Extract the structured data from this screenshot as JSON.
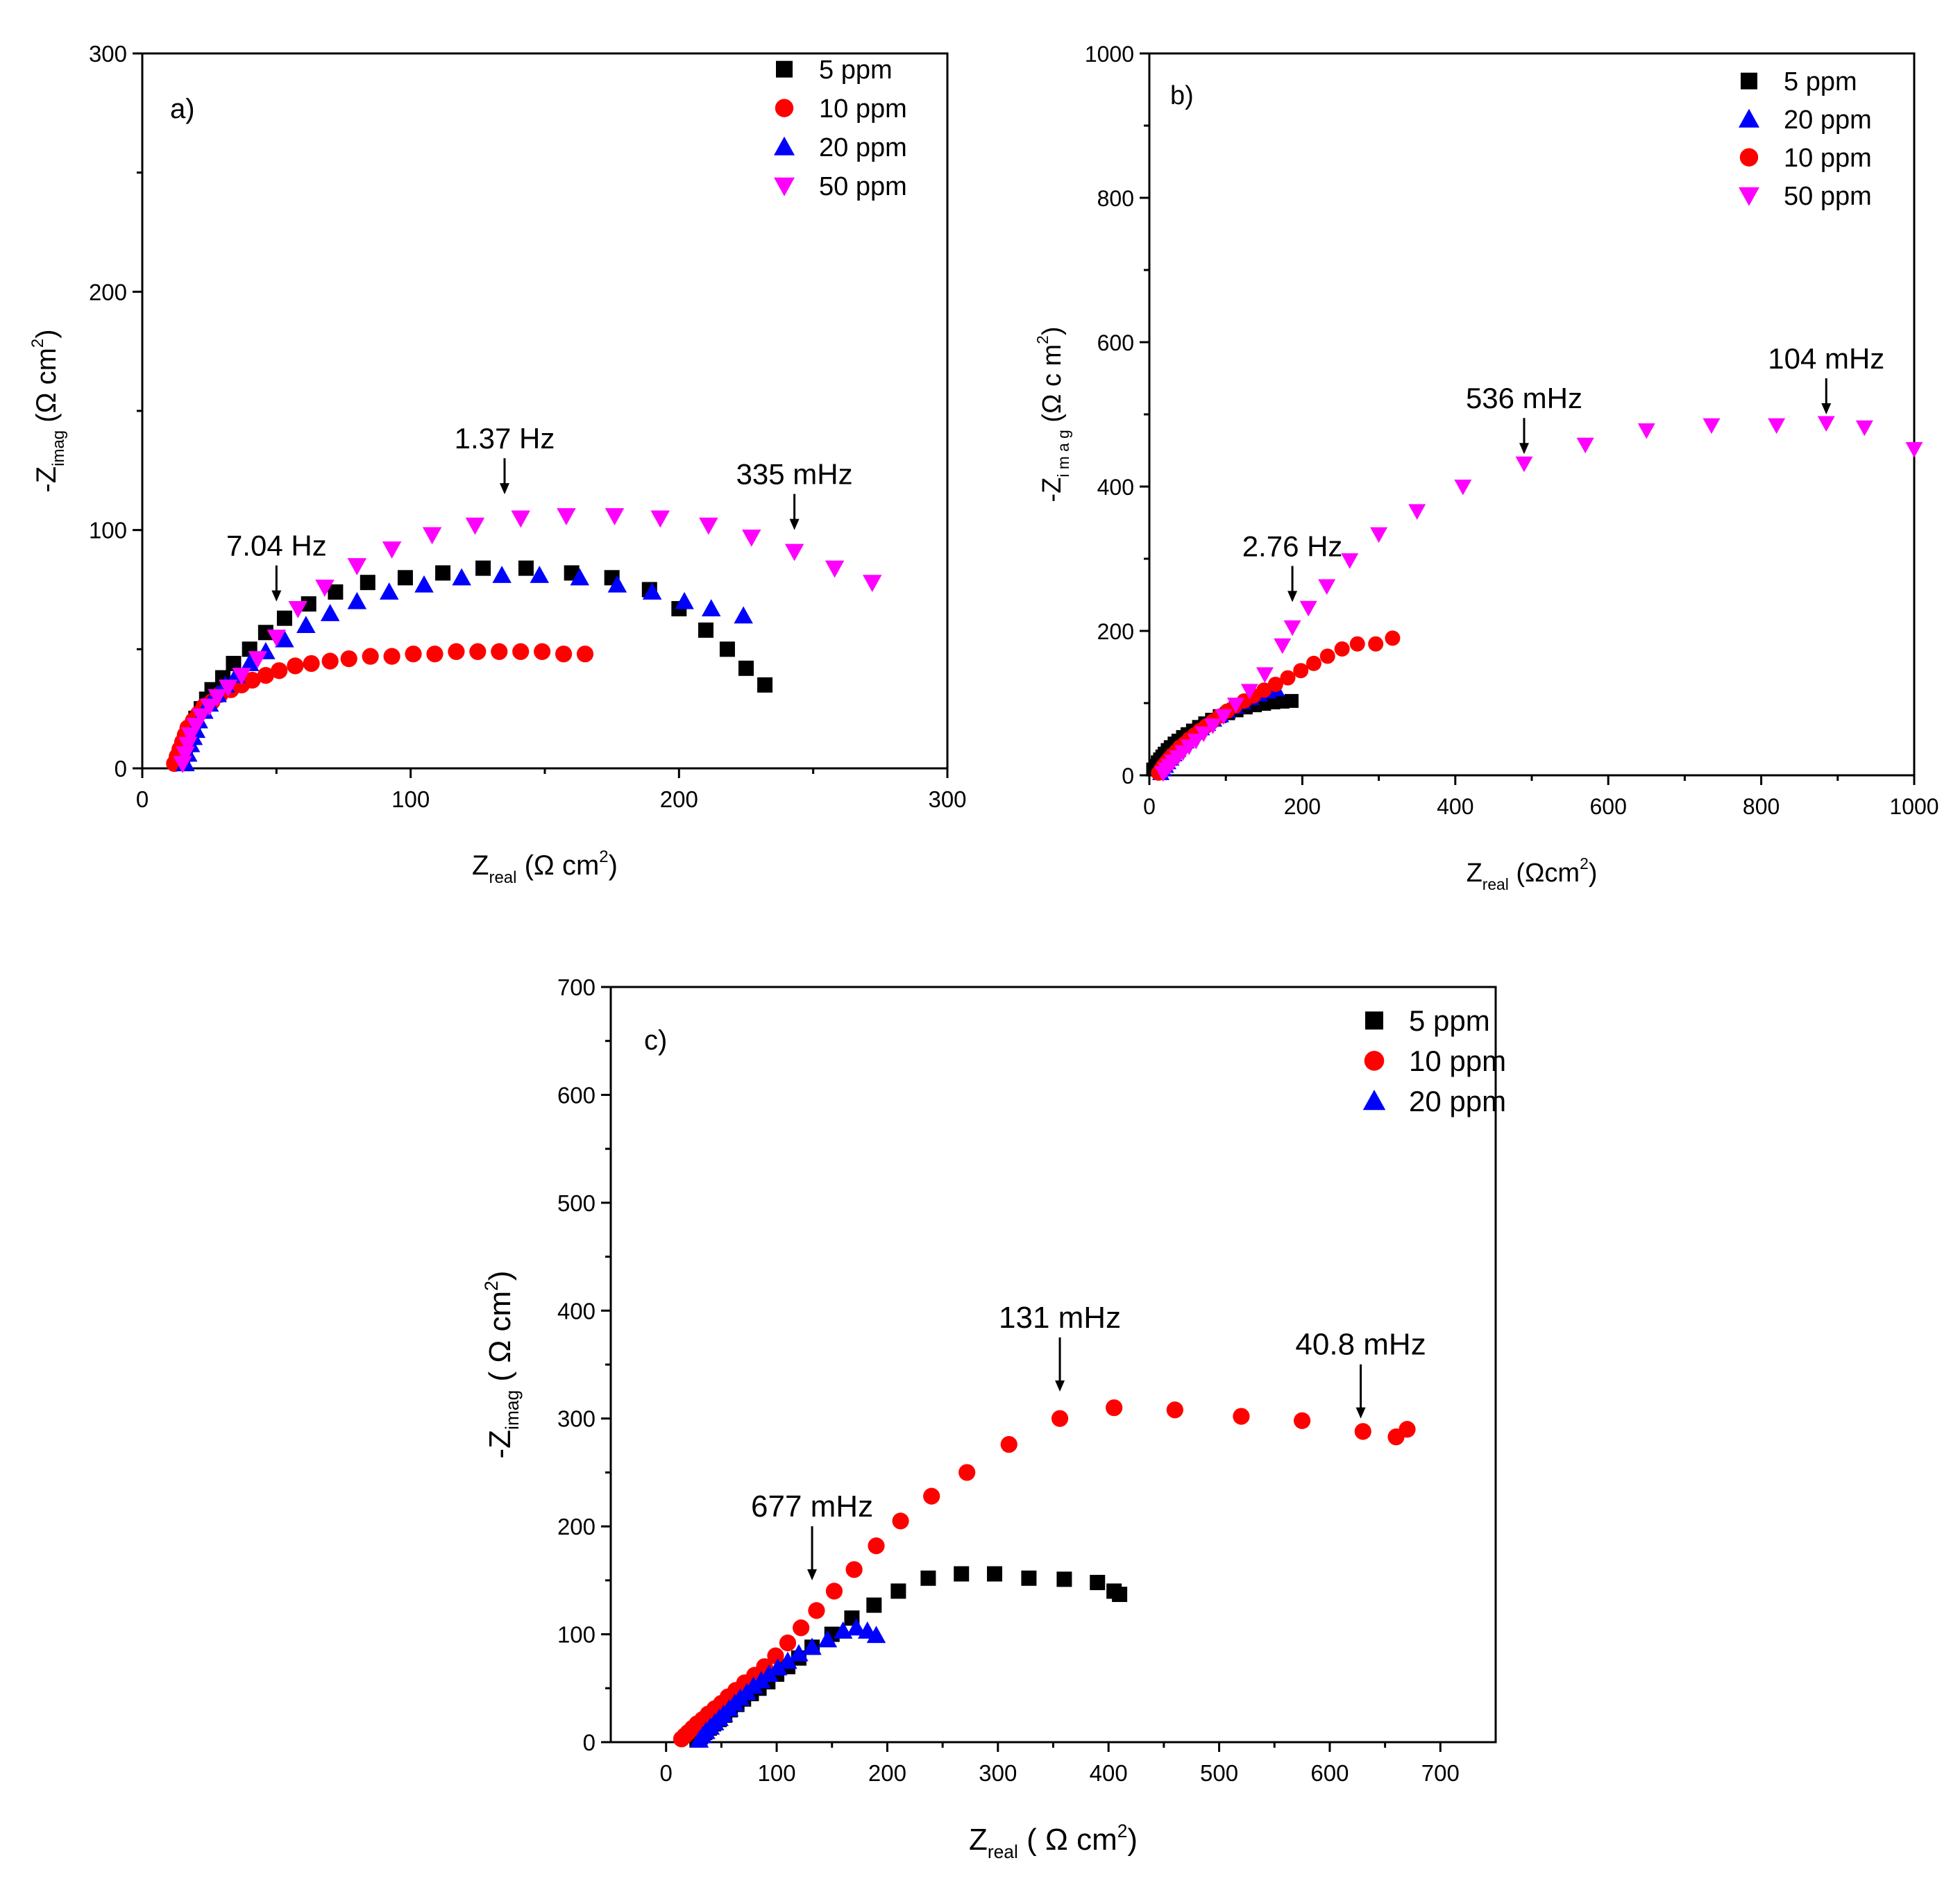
{
  "chart_data": [
    {
      "type": "scatter",
      "panel_label": "a)",
      "xlabel": {
        "prefix": "Z",
        "sub": "real",
        "suffix": " (Ω cm",
        "sup": "2",
        "close": ")"
      },
      "ylabel": {
        "prefix": "-Z",
        "sub": "imag",
        "suffix": " (Ω cm",
        "sup": "2",
        "close": ")"
      },
      "xlim": [
        0,
        300
      ],
      "ylim": [
        0,
        300
      ],
      "xticks": [
        0,
        100,
        200,
        300
      ],
      "yticks": [
        0,
        100,
        200,
        300
      ],
      "xtick_labels": [
        "0",
        "100",
        "200",
        "300"
      ],
      "ytick_labels": [
        "0",
        "100",
        "200",
        "300"
      ],
      "legend_position": "top-right",
      "series": [
        {
          "name": "5 ppm",
          "marker": "square",
          "color": "#000000",
          "x": [
            15,
            16,
            17,
            18,
            19,
            20,
            22,
            24,
            26,
            30,
            34,
            40,
            46,
            53,
            62,
            72,
            84,
            98,
            112,
            127,
            143,
            160,
            175,
            189,
            200,
            210,
            218,
            225,
            232
          ],
          "y": [
            2,
            6,
            10,
            14,
            17,
            21,
            25,
            29,
            33,
            38,
            44,
            50,
            57,
            63,
            69,
            74,
            78,
            80,
            82,
            84,
            84,
            82,
            80,
            75,
            67,
            58,
            50,
            42,
            35
          ]
        },
        {
          "name": "10 ppm",
          "marker": "circle",
          "color": "#ff0000",
          "x": [
            12,
            13,
            14,
            15,
            16,
            17,
            19,
            21,
            23,
            26,
            29,
            33,
            37,
            41,
            46,
            51,
            57,
            63,
            70,
            77,
            85,
            93,
            101,
            109,
            117,
            125,
            133,
            141,
            149,
            157,
            165
          ],
          "y": [
            2,
            5,
            8,
            11,
            14,
            17,
            20,
            23,
            26,
            28,
            31,
            33,
            35,
            37,
            39,
            41,
            43,
            44,
            45,
            46,
            47,
            47,
            48,
            48,
            49,
            49,
            49,
            49,
            49,
            48,
            48
          ]
        },
        {
          "name": "20 ppm",
          "marker": "triangle-up",
          "color": "#0000ff",
          "x": [
            16,
            17,
            18,
            19,
            20,
            21,
            23,
            25,
            28,
            31,
            35,
            40,
            46,
            53,
            61,
            70,
            80,
            92,
            105,
            119,
            134,
            148,
            163,
            177,
            190,
            202,
            212,
            224
          ],
          "y": [
            2,
            6,
            10,
            13,
            16,
            20,
            24,
            27,
            31,
            35,
            39,
            44,
            49,
            54,
            60,
            65,
            70,
            74,
            77,
            80,
            81,
            81,
            80,
            77,
            74,
            70,
            67,
            64
          ]
        },
        {
          "name": "50 ppm",
          "marker": "triangle-down",
          "color": "#ff00ff",
          "x": [
            15,
            16,
            17,
            18,
            20,
            22,
            25,
            28,
            32,
            37,
            43,
            50,
            58,
            68,
            80,
            93,
            108,
            124,
            141,
            158,
            176,
            193,
            211,
            227,
            243,
            258,
            272
          ],
          "y": [
            2,
            6,
            10,
            14,
            18,
            22,
            26,
            30,
            34,
            39,
            46,
            55,
            67,
            76,
            85,
            92,
            98,
            102,
            105,
            106,
            106,
            105,
            102,
            97,
            91,
            84,
            78
          ]
        }
      ],
      "annotations": [
        {
          "text": "7.04 Hz",
          "x": 50,
          "y": 70
        },
        {
          "text": "1.37 Hz",
          "x": 135,
          "y": 115
        },
        {
          "text": "335 mHz",
          "x": 243,
          "y": 100
        }
      ]
    },
    {
      "type": "scatter",
      "panel_label": "b)",
      "xlabel": {
        "prefix": "Z",
        "sub": "real",
        "suffix": " (Ωcm",
        "sup": "2",
        "close": ")"
      },
      "ylabel": {
        "prefix": "-Z",
        "sub": "i m a g",
        "suffix": " (Ω c m",
        "sup": "2",
        "close": ")"
      },
      "xlim": [
        0,
        1000
      ],
      "ylim": [
        0,
        1000
      ],
      "xticks": [
        0,
        200,
        400,
        600,
        800,
        1000
      ],
      "yticks": [
        0,
        200,
        400,
        600,
        800,
        1000
      ],
      "xtick_labels": [
        "0",
        "200",
        "400",
        "600",
        "800",
        "1000"
      ],
      "ytick_labels": [
        "0",
        "200",
        "400",
        "600",
        "800",
        "1000"
      ],
      "legend_position": "top-right",
      "series": [
        {
          "name": "5 ppm",
          "marker": "square",
          "color": "#000000",
          "x": [
            5,
            8,
            11,
            14,
            17,
            20,
            24,
            28,
            33,
            38,
            44,
            50,
            57,
            65,
            73,
            82,
            92,
            103,
            114,
            126,
            138,
            150,
            162,
            174,
            186
          ],
          "y": [
            8,
            13,
            18,
            22,
            26,
            30,
            35,
            39,
            44,
            48,
            53,
            57,
            62,
            67,
            72,
            77,
            82,
            86,
            90,
            94,
            97,
            99,
            101,
            102,
            103
          ]
        },
        {
          "name": "20 ppm",
          "marker": "triangle-up",
          "color": "#0000ff",
          "x": [
            15,
            18,
            21,
            24,
            28,
            32,
            37,
            42,
            48,
            54,
            61,
            68,
            76,
            84,
            93,
            102,
            112,
            122,
            133,
            144,
            155,
            166
          ],
          "y": [
            3,
            8,
            13,
            18,
            23,
            29,
            35,
            41,
            47,
            53,
            59,
            65,
            71,
            77,
            83,
            89,
            95,
            101,
            107,
            112,
            116,
            119
          ]
        },
        {
          "name": "10 ppm",
          "marker": "circle",
          "color": "#ff0000",
          "x": [
            12,
            15,
            18,
            22,
            26,
            30,
            35,
            40,
            46,
            52,
            59,
            66,
            74,
            83,
            92,
            102,
            112,
            124,
            136,
            150,
            165,
            181,
            198,
            215,
            233,
            252,
            272,
            296,
            318
          ],
          "y": [
            3,
            8,
            13,
            18,
            23,
            28,
            33,
            39,
            44,
            50,
            56,
            62,
            68,
            75,
            82,
            89,
            96,
            103,
            110,
            118,
            126,
            135,
            145,
            155,
            165,
            175,
            182,
            182,
            190
          ]
        },
        {
          "name": "50 ppm",
          "marker": "triangle-down",
          "color": "#ff00ff",
          "x": [
            18,
            22,
            26,
            31,
            37,
            44,
            52,
            61,
            71,
            83,
            97,
            113,
            131,
            151,
            174,
            187,
            208,
            232,
            262,
            300,
            350,
            410,
            490,
            570,
            650,
            735,
            820,
            885,
            935,
            1000
          ],
          "y": [
            3,
            8,
            13,
            19,
            25,
            32,
            40,
            48,
            58,
            69,
            82,
            98,
            117,
            140,
            180,
            205,
            232,
            262,
            298,
            334,
            366,
            400,
            432,
            458,
            478,
            485,
            485,
            488,
            482,
            452
          ]
        }
      ],
      "annotations": [
        {
          "text": "2.76 Hz",
          "x": 187,
          "y": 240
        },
        {
          "text": "536 mHz",
          "x": 490,
          "y": 445
        },
        {
          "text": "104 mHz",
          "x": 885,
          "y": 500
        }
      ]
    },
    {
      "type": "scatter",
      "panel_label": "c)",
      "xlabel": {
        "prefix": "Z",
        "sub": "real",
        "suffix": " ( Ω cm",
        "sup": "2",
        "close": ")"
      },
      "ylabel": {
        "prefix": "-Z",
        "sub": "imag",
        "suffix": " ( Ω cm",
        "sup": "2",
        "close": ")"
      },
      "xlim": [
        -50,
        750
      ],
      "ylim": [
        0,
        700
      ],
      "xticks": [
        0,
        100,
        200,
        300,
        400,
        500,
        600,
        700
      ],
      "yticks": [
        0,
        100,
        200,
        300,
        400,
        500,
        600,
        700
      ],
      "xtick_labels": [
        "0",
        "100",
        "200",
        "300",
        "400",
        "500",
        "600",
        "700"
      ],
      "ytick_labels": [
        "0",
        "100",
        "200",
        "300",
        "400",
        "500",
        "600",
        "700"
      ],
      "legend_position": "top-right",
      "series": [
        {
          "name": "5 ppm",
          "marker": "square",
          "color": "#000000",
          "x": [
            28,
            31,
            35,
            39,
            43,
            48,
            53,
            58,
            64,
            70,
            77,
            84,
            92,
            100,
            110,
            120,
            132,
            150,
            168,
            188,
            210,
            237,
            267,
            297,
            328,
            360,
            390,
            405,
            410
          ],
          "y": [
            2,
            5,
            9,
            13,
            17,
            21,
            25,
            30,
            35,
            40,
            45,
            50,
            56,
            63,
            70,
            78,
            88,
            100,
            115,
            127,
            140,
            152,
            156,
            156,
            152,
            151,
            148,
            140,
            137
          ]
        },
        {
          "name": "10 ppm",
          "marker": "circle",
          "color": "#ff0000",
          "x": [
            14,
            17,
            20,
            24,
            28,
            33,
            38,
            44,
            50,
            56,
            63,
            71,
            80,
            89,
            99,
            110,
            122,
            136,
            152,
            170,
            190,
            212,
            240,
            272,
            310,
            356,
            405,
            460,
            520,
            575,
            630,
            660,
            670
          ],
          "y": [
            3,
            6,
            9,
            13,
            17,
            21,
            26,
            31,
            36,
            42,
            48,
            55,
            62,
            70,
            80,
            92,
            106,
            122,
            140,
            160,
            182,
            205,
            228,
            250,
            276,
            300,
            310,
            308,
            302,
            298,
            288,
            283,
            290
          ]
        },
        {
          "name": "20 ppm",
          "marker": "triangle-up",
          "color": "#0000ff",
          "x": [
            30,
            33,
            36,
            40,
            44,
            48,
            52,
            57,
            62,
            67,
            73,
            79,
            86,
            93,
            101,
            110,
            120,
            132,
            146,
            160,
            172,
            182,
            190
          ],
          "y": [
            2,
            6,
            10,
            14,
            18,
            22,
            26,
            31,
            36,
            41,
            46,
            52,
            57,
            63,
            69,
            75,
            82,
            88,
            95,
            103,
            106,
            103,
            99
          ]
        }
      ],
      "annotations": [
        {
          "text": "677 mHz",
          "x": 132,
          "y": 150
        },
        {
          "text": "131 mHz",
          "x": 356,
          "y": 325
        },
        {
          "text": "40.8 mHz",
          "x": 628,
          "y": 300
        }
      ]
    }
  ]
}
